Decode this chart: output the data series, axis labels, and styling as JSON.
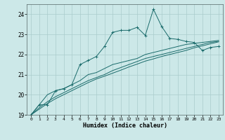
{
  "xlabel": "Humidex (Indice chaleur)",
  "bg_color": "#cce8e8",
  "grid_color": "#aacccc",
  "line_color": "#1a6b6b",
  "xlim": [
    -0.5,
    23.5
  ],
  "ylim": [
    19,
    24.5
  ],
  "yticks": [
    19,
    20,
    21,
    22,
    23,
    24
  ],
  "xticks": [
    0,
    1,
    2,
    3,
    4,
    5,
    6,
    7,
    8,
    9,
    10,
    11,
    12,
    13,
    14,
    15,
    16,
    17,
    18,
    19,
    20,
    21,
    22,
    23
  ],
  "line1_x": [
    0,
    1,
    2,
    3,
    4,
    5,
    6,
    7,
    8,
    9,
    10,
    11,
    12,
    13,
    14,
    15,
    16,
    17,
    18,
    19,
    20,
    21,
    22,
    23
  ],
  "line1_y": [
    19.0,
    19.5,
    19.5,
    20.2,
    20.3,
    20.5,
    21.5,
    21.7,
    21.9,
    22.4,
    23.1,
    23.2,
    23.2,
    23.35,
    22.95,
    24.25,
    23.4,
    22.8,
    22.75,
    22.65,
    22.6,
    22.2,
    22.35,
    22.4
  ],
  "line2_x": [
    0,
    1,
    2,
    3,
    4,
    5,
    6,
    7,
    8,
    9,
    10,
    11,
    12,
    13,
    14,
    15,
    16,
    17,
    18,
    19,
    20,
    21,
    22,
    23
  ],
  "line2_y": [
    19.0,
    19.5,
    20.0,
    20.2,
    20.3,
    20.5,
    20.7,
    21.0,
    21.1,
    21.3,
    21.5,
    21.6,
    21.7,
    21.8,
    22.0,
    22.1,
    22.2,
    22.3,
    22.4,
    22.5,
    22.55,
    22.6,
    22.65,
    22.7
  ],
  "line3_x": [
    0,
    1,
    2,
    3,
    4,
    5,
    6,
    7,
    8,
    9,
    10,
    11,
    12,
    13,
    14,
    15,
    16,
    17,
    18,
    19,
    20,
    21,
    22,
    23
  ],
  "line3_y": [
    19.0,
    19.35,
    19.65,
    19.9,
    20.1,
    20.3,
    20.5,
    20.7,
    20.85,
    21.0,
    21.2,
    21.35,
    21.5,
    21.65,
    21.8,
    21.9,
    22.0,
    22.1,
    22.2,
    22.3,
    22.4,
    22.5,
    22.6,
    22.65
  ],
  "line4_x": [
    0,
    1,
    2,
    3,
    4,
    5,
    6,
    7,
    8,
    9,
    10,
    11,
    12,
    13,
    14,
    15,
    16,
    17,
    18,
    19,
    20,
    21,
    22,
    23
  ],
  "line4_y": [
    19.0,
    19.28,
    19.56,
    19.8,
    20.0,
    20.2,
    20.4,
    20.6,
    20.78,
    20.92,
    21.07,
    21.22,
    21.38,
    21.52,
    21.67,
    21.78,
    21.9,
    22.0,
    22.1,
    22.2,
    22.33,
    22.43,
    22.53,
    22.63
  ]
}
